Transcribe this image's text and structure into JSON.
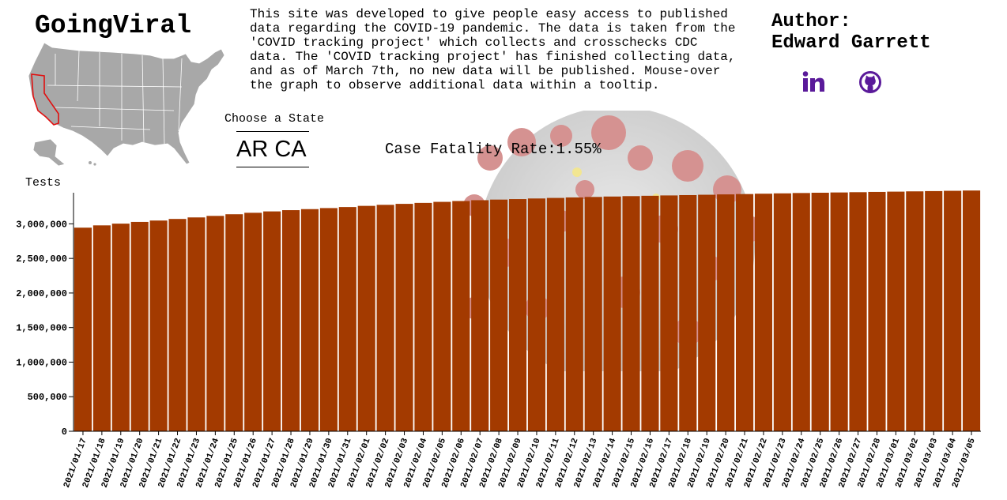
{
  "site": {
    "title": "GoingViral",
    "description": "This site was developed to give people easy access to published\ndata regarding the COVID-19 pandemic. The data is taken from the\n'COVID tracking project' which collects and crosschecks CDC\ndata. The 'COVID tracking project' has finished collecting data,\nand as of March 7th, no new data will be published. Mouse-over\nthe graph to observe additional data within a tooltip.",
    "author_label": "Author:",
    "author_name": "Edward Garrett"
  },
  "social": {
    "linkedin_icon": "linkedin-icon",
    "github_icon": "github-icon",
    "color": "#5a1a9a"
  },
  "state_picker": {
    "label": "Choose a State",
    "visible_options": "AR CA"
  },
  "map": {
    "highlighted_state": "CA",
    "fill": "#a8a8a8",
    "highlight_stroke": "#e01010"
  },
  "stats": {
    "cfr_label": "Case Fatality Rate:",
    "cfr_value": "1.55%"
  },
  "colors": {
    "bar": "#a33a00",
    "axis": "#000000"
  },
  "chart_data": {
    "type": "bar",
    "ylabel": "Tests",
    "ylim": [
      0,
      3450000
    ],
    "yticks": [
      0,
      500000,
      1000000,
      1500000,
      2000000,
      2500000,
      3000000
    ],
    "ytick_labels": [
      "0",
      "500,000",
      "1,000,000",
      "1,500,000",
      "2,000,000",
      "2,500,000",
      "3,000,000"
    ],
    "categories": [
      "2021/01/17",
      "2021/01/18",
      "2021/01/19",
      "2021/01/20",
      "2021/01/21",
      "2021/01/22",
      "2021/01/23",
      "2021/01/24",
      "2021/01/25",
      "2021/01/26",
      "2021/01/27",
      "2021/01/28",
      "2021/01/29",
      "2021/01/30",
      "2021/01/31",
      "2021/02/01",
      "2021/02/02",
      "2021/02/03",
      "2021/02/04",
      "2021/02/05",
      "2021/02/06",
      "2021/02/07",
      "2021/02/08",
      "2021/02/09",
      "2021/02/10",
      "2021/02/11",
      "2021/02/12",
      "2021/02/13",
      "2021/02/14",
      "2021/02/15",
      "2021/02/16",
      "2021/02/17",
      "2021/02/18",
      "2021/02/19",
      "2021/02/20",
      "2021/02/21",
      "2021/02/22",
      "2021/02/23",
      "2021/02/24",
      "2021/02/25",
      "2021/02/26",
      "2021/02/27",
      "2021/02/28",
      "2021/03/01",
      "2021/03/02",
      "2021/03/03",
      "2021/03/04",
      "2021/03/05"
    ],
    "values": [
      2945000,
      2978000,
      3003000,
      3028000,
      3048000,
      3071000,
      3093000,
      3115000,
      3139000,
      3160000,
      3180000,
      3198000,
      3213000,
      3228000,
      3243000,
      3260000,
      3275000,
      3289000,
      3303000,
      3318000,
      3330000,
      3342000,
      3351000,
      3358000,
      3367000,
      3375000,
      3382000,
      3389000,
      3395000,
      3401000,
      3406000,
      3411000,
      3416000,
      3421000,
      3426000,
      3431000,
      3436000,
      3441000,
      3446000,
      3450000,
      3454000,
      3458000,
      3462000,
      3466000,
      3470000,
      3474000,
      3478000,
      3482000
    ]
  }
}
